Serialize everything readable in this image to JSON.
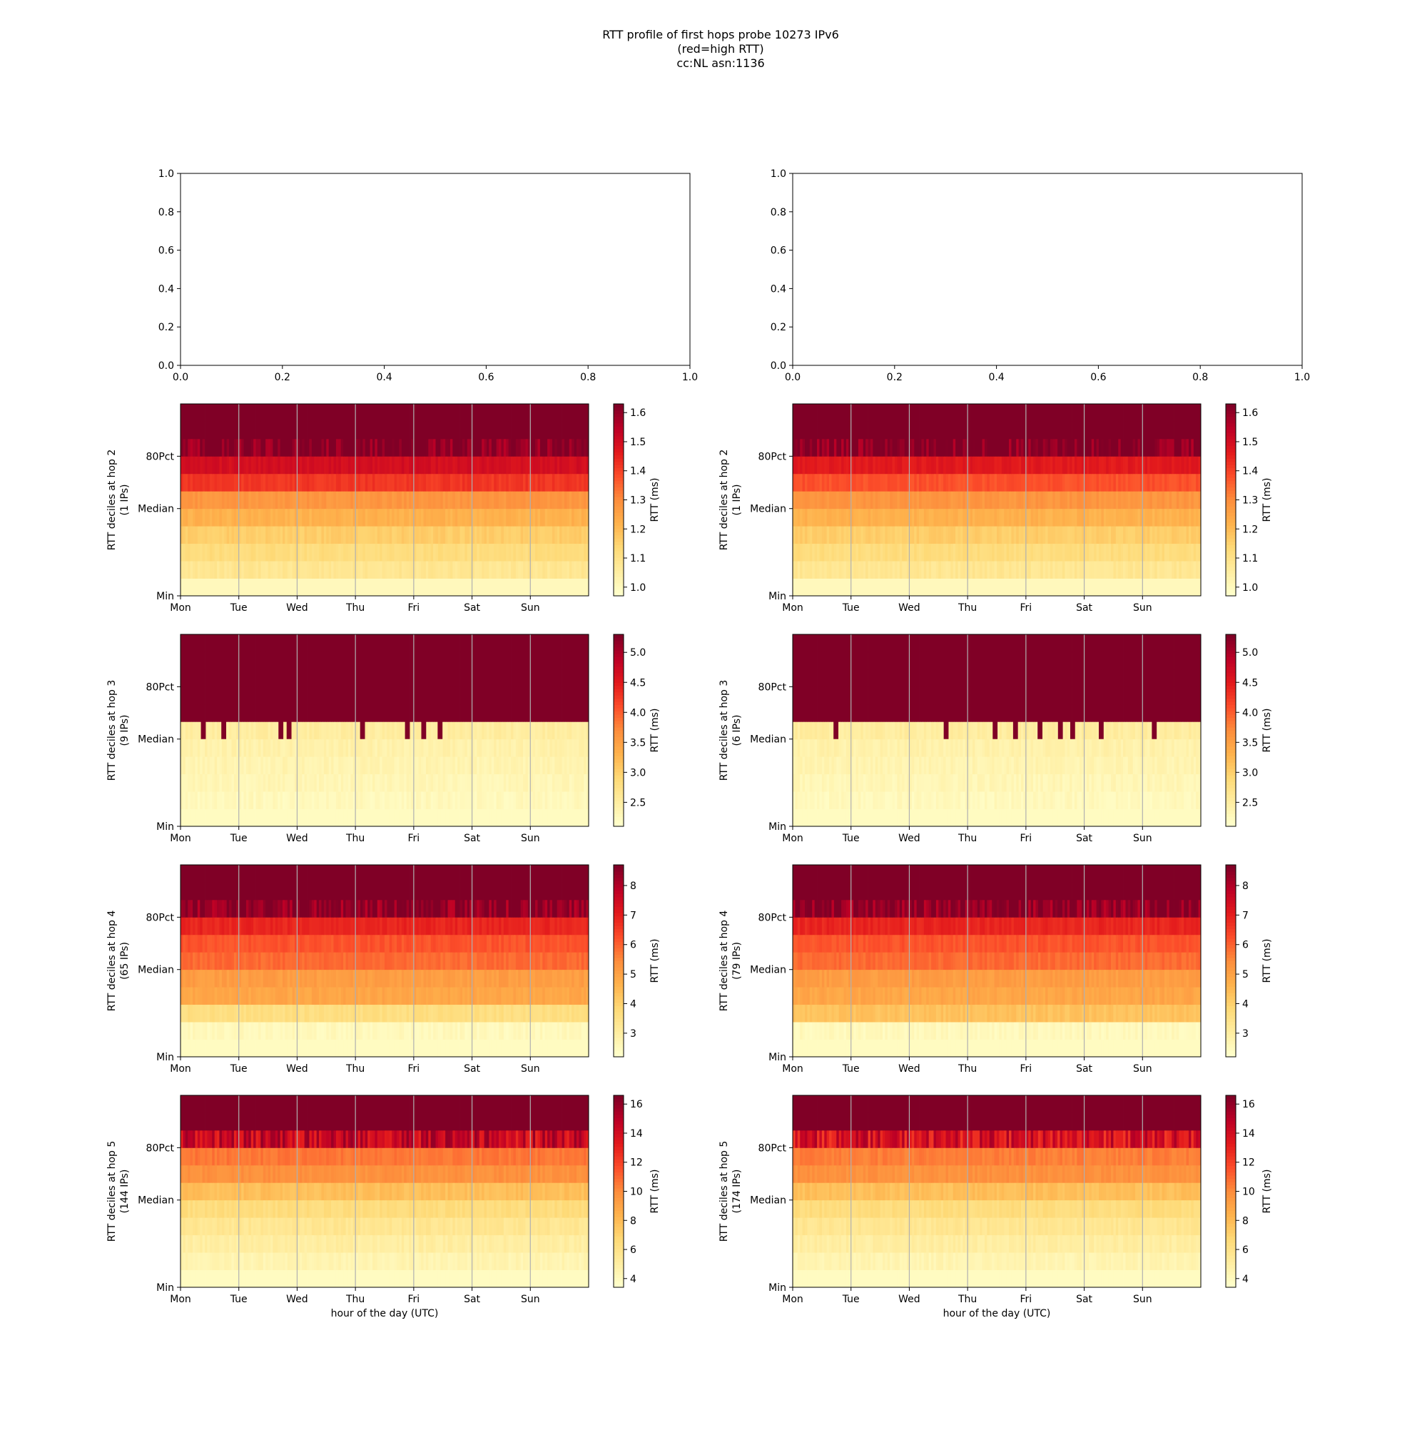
{
  "figure": {
    "title_lines": [
      "RTT profile of first hops probe 10273 IPv6",
      "(red=high RTT)",
      "cc:NL asn:1136"
    ]
  },
  "chart_data": [
    {
      "type": "line",
      "id": "empty-left",
      "x_ticks": [
        "0.0",
        "0.2",
        "0.4",
        "0.6",
        "0.8",
        "1.0"
      ],
      "y_ticks": [
        "0.0",
        "0.2",
        "0.4",
        "0.6",
        "0.8",
        "1.0"
      ],
      "xlim": [
        0,
        1
      ],
      "ylim": [
        0,
        1
      ]
    },
    {
      "type": "line",
      "id": "empty-right",
      "x_ticks": [
        "0.0",
        "0.2",
        "0.4",
        "0.6",
        "0.8",
        "1.0"
      ],
      "y_ticks": [
        "0.0",
        "0.2",
        "0.4",
        "0.6",
        "0.8",
        "1.0"
      ],
      "xlim": [
        0,
        1
      ],
      "ylim": [
        0,
        1
      ]
    },
    {
      "type": "heatmap",
      "id": "hm-l2",
      "hop": 2,
      "ylabel": "RTT deciles at hop 2",
      "ylabel2": "(1 IPs)",
      "colorbar_label": "RTT (ms)",
      "colorbar_ticks": [
        "1.0",
        "1.1",
        "1.2",
        "1.3",
        "1.4",
        "1.5",
        "1.6"
      ],
      "vmin": 0.97,
      "vmax": 1.63,
      "decile_values": [
        1.0,
        1.08,
        1.12,
        1.16,
        1.22,
        1.28,
        1.42,
        1.5,
        1.55,
        1.63
      ],
      "spikes": [],
      "xlabel": ""
    },
    {
      "type": "heatmap",
      "id": "hm-r2",
      "hop": 2,
      "ylabel": "RTT deciles at hop 2",
      "ylabel2": "(1 IPs)",
      "colorbar_label": "RTT (ms)",
      "colorbar_ticks": [
        "1.0",
        "1.1",
        "1.2",
        "1.3",
        "1.4",
        "1.5",
        "1.6"
      ],
      "vmin": 0.97,
      "vmax": 1.63,
      "decile_values": [
        1.0,
        1.08,
        1.12,
        1.16,
        1.22,
        1.28,
        1.38,
        1.47,
        1.55,
        1.63
      ],
      "spikes": [],
      "xlabel": ""
    },
    {
      "type": "heatmap",
      "id": "hm-l3",
      "hop": 3,
      "ylabel": "RTT deciles at hop 3",
      "ylabel2": "(9 IPs)",
      "colorbar_label": "RTT (ms)",
      "colorbar_ticks": [
        "2.5",
        "3.0",
        "3.5",
        "4.0",
        "4.5",
        "5.0"
      ],
      "vmin": 2.1,
      "vmax": 5.3,
      "decile_values": [
        2.2,
        2.25,
        2.3,
        2.35,
        2.4,
        2.5,
        5.3,
        5.3,
        5.3,
        5.3
      ],
      "spikes": [
        0.05,
        0.1,
        0.24,
        0.26,
        0.44,
        0.55,
        0.59,
        0.63
      ],
      "xlabel": ""
    },
    {
      "type": "heatmap",
      "id": "hm-r3",
      "hop": 3,
      "ylabel": "RTT deciles at hop 3",
      "ylabel2": "(6 IPs)",
      "colorbar_label": "RTT (ms)",
      "colorbar_ticks": [
        "2.5",
        "3.0",
        "3.5",
        "4.0",
        "4.5",
        "5.0"
      ],
      "vmin": 2.1,
      "vmax": 5.3,
      "decile_values": [
        2.2,
        2.25,
        2.3,
        2.35,
        2.4,
        2.5,
        5.3,
        5.3,
        5.3,
        5.3
      ],
      "spikes": [
        0.1,
        0.37,
        0.49,
        0.54,
        0.6,
        0.65,
        0.68,
        0.75,
        0.88
      ],
      "xlabel": ""
    },
    {
      "type": "heatmap",
      "id": "hm-l4",
      "hop": 4,
      "ylabel": "RTT deciles at hop 4",
      "ylabel2": "(65 IPs)",
      "colorbar_label": "RTT (ms)",
      "colorbar_ticks": [
        "3",
        "4",
        "5",
        "6",
        "7",
        "8"
      ],
      "vmin": 2.2,
      "vmax": 8.7,
      "decile_values": [
        2.4,
        2.5,
        3.6,
        4.9,
        5.1,
        5.9,
        6.2,
        6.9,
        7.8,
        8.7
      ],
      "spikes": [],
      "xlabel": ""
    },
    {
      "type": "heatmap",
      "id": "hm-r4",
      "hop": 4,
      "ylabel": "RTT deciles at hop 4",
      "ylabel2": "(79 IPs)",
      "colorbar_label": "RTT (ms)",
      "colorbar_ticks": [
        "3",
        "4",
        "5",
        "6",
        "7",
        "8"
      ],
      "vmin": 2.2,
      "vmax": 8.7,
      "decile_values": [
        2.4,
        2.5,
        4.3,
        4.9,
        5.1,
        5.9,
        6.2,
        6.9,
        7.8,
        8.7
      ],
      "spikes": [],
      "xlabel": ""
    },
    {
      "type": "heatmap",
      "id": "hm-l5",
      "hop": 5,
      "ylabel": "RTT deciles at hop 5",
      "ylabel2": "(144 IPs)",
      "colorbar_label": "RTT (ms)",
      "colorbar_ticks": [
        "4",
        "6",
        "8",
        "10",
        "12",
        "14",
        "16"
      ],
      "vmin": 3.4,
      "vmax": 16.6,
      "decile_values": [
        3.8,
        4.4,
        5.0,
        5.6,
        6.4,
        7.8,
        9.8,
        10.6,
        12.8,
        16.6
      ],
      "spikes": [],
      "xlabel": "hour of the day (UTC)"
    },
    {
      "type": "heatmap",
      "id": "hm-r5",
      "hop": 5,
      "ylabel": "RTT deciles at hop 5",
      "ylabel2": "(174 IPs)",
      "colorbar_label": "RTT (ms)",
      "colorbar_ticks": [
        "4",
        "6",
        "8",
        "10",
        "12",
        "14",
        "16"
      ],
      "vmin": 3.4,
      "vmax": 16.6,
      "decile_values": [
        3.8,
        4.4,
        5.0,
        5.6,
        6.4,
        7.8,
        9.8,
        10.4,
        12.2,
        16.6
      ],
      "spikes": [],
      "xlabel": "hour of the day (UTC)"
    }
  ],
  "heatmap_common": {
    "x_ticks": [
      "Mon",
      "Tue",
      "Wed",
      "Thu",
      "Fri",
      "Sat",
      "Sun"
    ],
    "y_ticks": [
      "Min",
      "Median",
      "80Pct"
    ]
  },
  "colormap": [
    "#ffffcc",
    "#ffeda0",
    "#fed976",
    "#feb24c",
    "#fd8d3c",
    "#fc4e2a",
    "#e31a1c",
    "#bd0026",
    "#800026"
  ]
}
